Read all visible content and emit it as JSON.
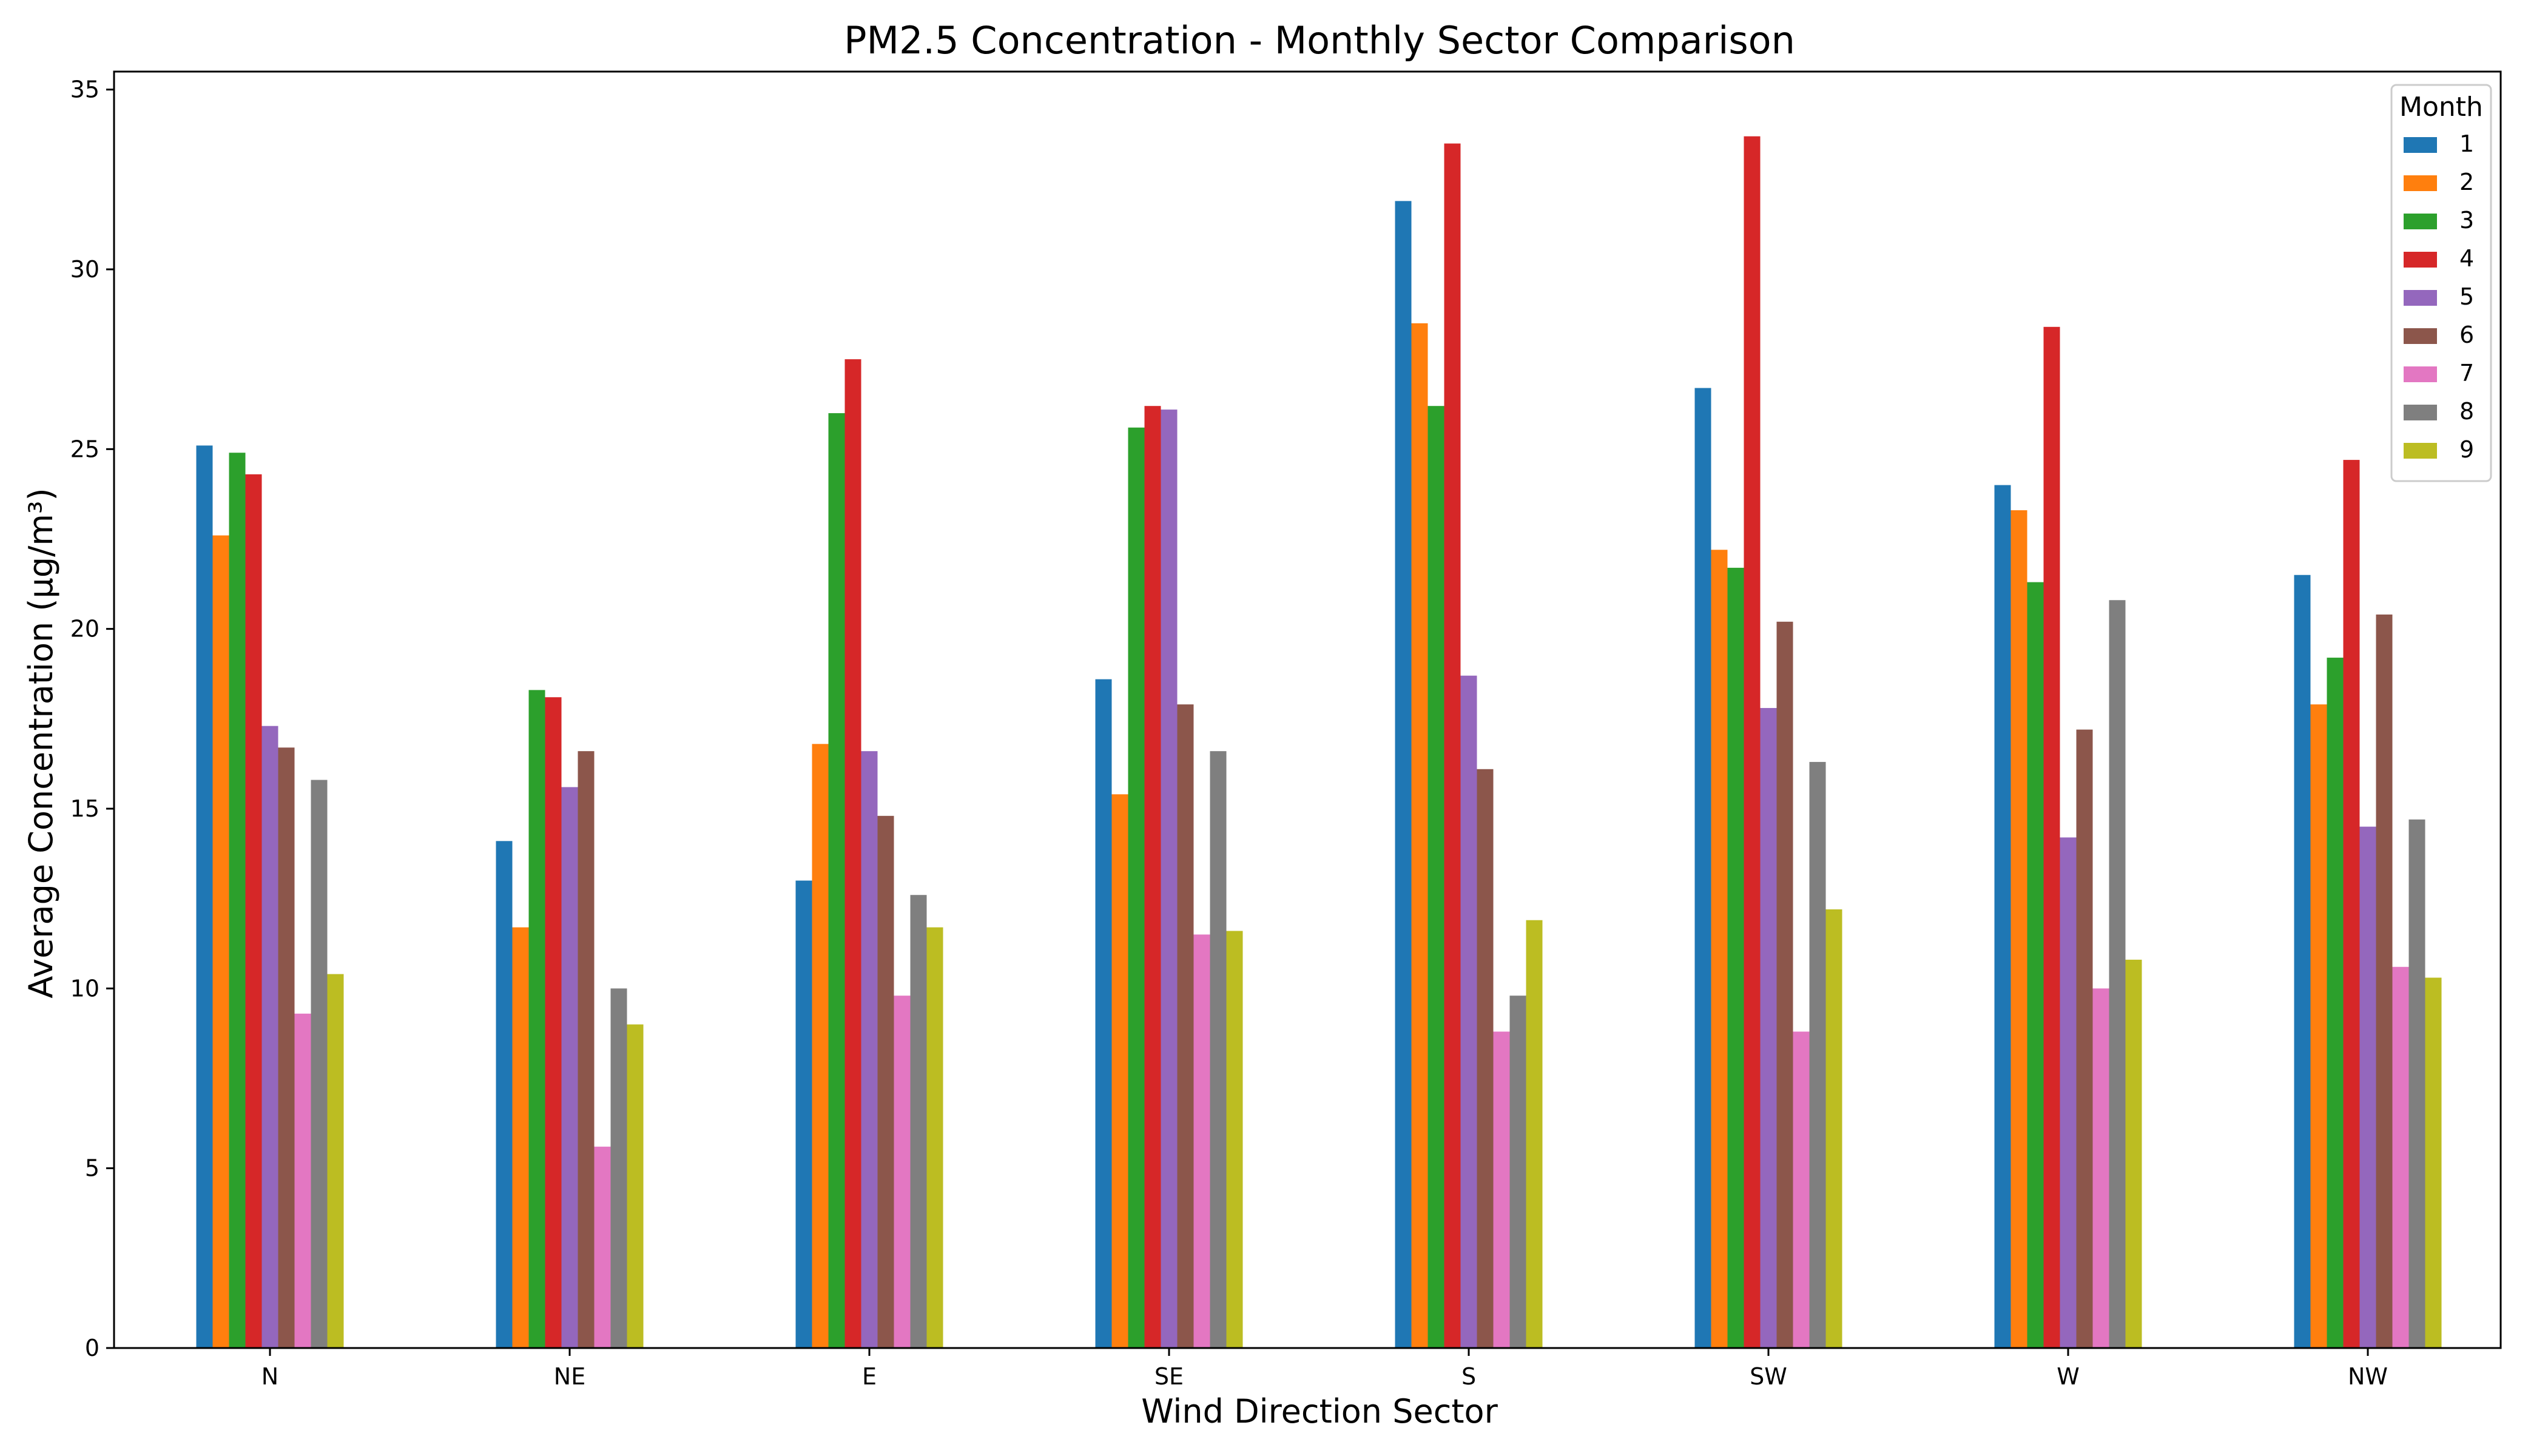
{
  "chart_data": {
    "type": "bar",
    "title": "PM2.5 Concentration - Monthly Sector Comparison",
    "xlabel": "Wind Direction Sector",
    "ylabel": "Average Concentration (μg/m³)",
    "ylim": [
      0,
      35.5
    ],
    "yticks": [
      0,
      5,
      10,
      15,
      20,
      25,
      30,
      35
    ],
    "grid": false,
    "legend_title": "Month",
    "legend_position": "top-right",
    "categories": [
      "N",
      "NE",
      "E",
      "SE",
      "S",
      "SW",
      "W",
      "NW"
    ],
    "series": [
      {
        "name": "1",
        "color": "#1f77b4",
        "values": [
          25.1,
          14.1,
          13.0,
          18.6,
          31.9,
          26.7,
          24.0,
          21.5
        ]
      },
      {
        "name": "2",
        "color": "#ff7f0e",
        "values": [
          22.6,
          11.7,
          16.8,
          15.4,
          28.5,
          22.2,
          23.3,
          17.9
        ]
      },
      {
        "name": "3",
        "color": "#2ca02c",
        "values": [
          24.9,
          18.3,
          26.0,
          25.6,
          26.2,
          21.7,
          21.3,
          19.2
        ]
      },
      {
        "name": "4",
        "color": "#d62728",
        "values": [
          24.3,
          18.1,
          27.5,
          26.2,
          33.5,
          33.7,
          28.4,
          24.7
        ]
      },
      {
        "name": "5",
        "color": "#9467bd",
        "values": [
          17.3,
          15.6,
          16.6,
          26.1,
          18.7,
          17.8,
          14.2,
          14.5
        ]
      },
      {
        "name": "6",
        "color": "#8c564b",
        "values": [
          16.7,
          16.6,
          14.8,
          17.9,
          16.1,
          20.2,
          17.2,
          20.4
        ]
      },
      {
        "name": "7",
        "color": "#e377c2",
        "values": [
          9.3,
          5.6,
          9.8,
          11.5,
          8.8,
          8.8,
          10.0,
          10.6
        ]
      },
      {
        "name": "8",
        "color": "#7f7f7f",
        "values": [
          15.8,
          10.0,
          12.6,
          16.6,
          9.8,
          16.3,
          20.8,
          14.7
        ]
      },
      {
        "name": "9",
        "color": "#bcbd22",
        "values": [
          10.4,
          9.0,
          11.7,
          11.6,
          11.9,
          12.2,
          10.8,
          10.3
        ]
      }
    ]
  }
}
